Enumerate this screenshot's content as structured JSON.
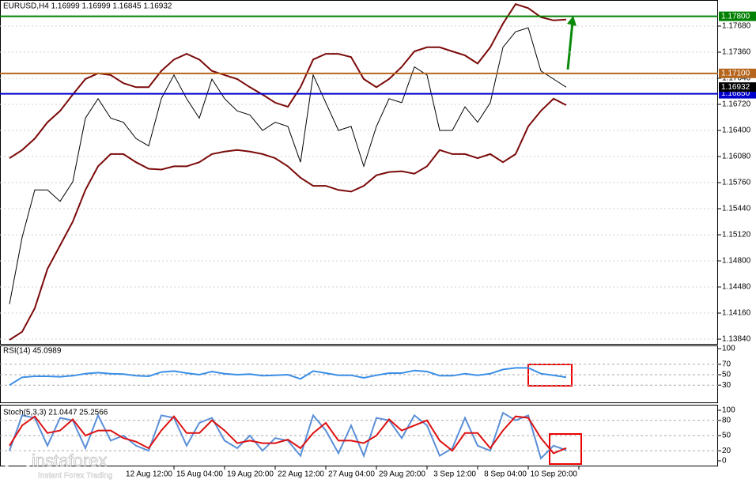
{
  "chart_data": [
    {
      "type": "line",
      "title": "EURUSD,H4  1.16999 1.16999 1.16845 1.16932",
      "categories": [
        null,
        null,
        null,
        null,
        null,
        null,
        null,
        null,
        null,
        null,
        null,
        null,
        null,
        "12 Aug 12:00",
        null,
        null,
        null,
        "15 Aug 04:00",
        null,
        null,
        null,
        "19 Aug 20:00",
        null,
        null,
        null,
        "22 Aug 12:00",
        null,
        null,
        null,
        "27 Aug 04:00",
        null,
        null,
        null,
        "29 Aug 20:00",
        null,
        null,
        null,
        "3 Sep 12:00",
        null,
        null,
        null,
        "8 Sep 04:00",
        null,
        null,
        null,
        "10 Sep 20:00"
      ],
      "series": [
        {
          "color": "#000000",
          "values": [
            1.1427,
            1.1509,
            1.1567,
            1.1567,
            1.1553,
            1.1577,
            1.1655,
            1.1679,
            1.1655,
            1.165,
            1.163,
            1.1621,
            1.1679,
            1.1708,
            1.1679,
            1.1655,
            1.1703,
            1.1679,
            1.1664,
            1.1659,
            1.164,
            1.165,
            1.1645,
            1.1601,
            1.1708,
            1.1674,
            1.164,
            1.1645,
            1.1596,
            1.1645,
            1.1679,
            1.1674,
            1.1718,
            1.1708,
            1.164,
            1.164,
            1.1669,
            1.165,
            1.1674,
            1.1742,
            1.1761,
            1.1766,
            1.1713,
            1.1703,
            1.1693,
            null
          ]
        },
        {
          "color": "#7b0a0a",
          "values": [
            1.1606,
            1.1616,
            1.163,
            1.165,
            1.1664,
            1.1684,
            1.1703,
            1.171,
            1.1708,
            1.1698,
            1.1693,
            1.1693,
            1.1713,
            1.1727,
            1.1734,
            1.1727,
            1.1713,
            1.1708,
            1.1703,
            1.1693,
            1.1684,
            1.1674,
            1.1669,
            1.1693,
            1.1727,
            1.1734,
            1.1734,
            1.173,
            1.1703,
            1.1693,
            1.1703,
            1.1718,
            1.1737,
            1.1742,
            1.1742,
            1.1737,
            1.1732,
            1.1722,
            1.1742,
            1.1771,
            1.1795,
            1.179,
            1.1779,
            1.1775,
            1.1776,
            null
          ]
        },
        {
          "color": "#7b0a0a",
          "values": [
            1.1383,
            1.1393,
            1.1422,
            1.147,
            1.1499,
            1.1528,
            1.1567,
            1.1596,
            1.1611,
            1.1611,
            1.1601,
            1.1593,
            1.1592,
            1.1596,
            1.1596,
            1.1601,
            1.1611,
            1.1614,
            1.1616,
            1.1614,
            1.1611,
            1.1606,
            1.1596,
            1.1582,
            1.1572,
            1.1572,
            1.1567,
            1.1565,
            1.1572,
            1.1585,
            1.1589,
            1.159,
            1.1587,
            1.1596,
            1.1616,
            1.1611,
            1.1611,
            1.1606,
            1.1611,
            1.1601,
            1.1611,
            1.1645,
            1.1664,
            1.1679,
            1.1671,
            null
          ]
        }
      ],
      "ylim": [
        1.13782,
        1.18
      ],
      "yticks": [
        {
          "value": 1.1768,
          "label": "1.17680"
        },
        {
          "value": 1.1736,
          "label": "1.17360"
        },
        {
          "value": 1.1704,
          "label": "1.17040"
        },
        {
          "value": 1.1672,
          "label": "1.16720"
        },
        {
          "value": 1.164,
          "label": "1.16400"
        },
        {
          "value": 1.1608,
          "label": "1.16080"
        },
        {
          "value": 1.1576,
          "label": "1.15760"
        },
        {
          "value": 1.1544,
          "label": "1.15440"
        },
        {
          "value": 1.1512,
          "label": "1.15120"
        },
        {
          "value": 1.148,
          "label": "1.14800"
        },
        {
          "value": 1.1448,
          "label": "1.14480"
        },
        {
          "value": 1.1416,
          "label": "1.14160"
        },
        {
          "value": 1.1384,
          "label": "1.13840"
        }
      ],
      "levels": [
        {
          "value": 1.178,
          "label": "1.17800",
          "color": "#008000"
        },
        {
          "value": 1.171,
          "label": "1.17100",
          "color": "#b5651d"
        },
        {
          "value": 1.1685,
          "label": "1.16850",
          "color": "#0000cc"
        }
      ],
      "current_price": {
        "value": 1.16932,
        "label": "1.16932"
      }
    },
    {
      "type": "line",
      "title": "RSI(14) 45.0989",
      "series": [
        {
          "color": "#3a8ee6",
          "values": [
            30,
            45,
            47,
            47,
            46,
            48,
            52,
            54,
            52,
            51,
            48,
            47,
            55,
            57,
            53,
            50,
            56,
            52,
            50,
            51,
            48,
            49,
            50,
            42,
            57,
            53,
            49,
            49,
            44,
            49,
            53,
            53,
            58,
            56,
            48,
            48,
            52,
            49,
            52,
            60,
            63,
            63,
            52,
            49,
            45.0989,
            null
          ]
        }
      ],
      "ylim": [
        0,
        100
      ],
      "yticks": [
        30,
        50,
        70,
        100
      ]
    },
    {
      "type": "line",
      "title": "Stoch(5,3,3) 21.0447 25.2566",
      "series": [
        {
          "color": "#5b8fd8",
          "values": [
            20,
            90,
            85,
            30,
            85,
            80,
            25,
            90,
            40,
            50,
            30,
            20,
            90,
            85,
            30,
            75,
            85,
            40,
            25,
            50,
            20,
            45,
            40,
            10,
            90,
            60,
            15,
            70,
            10,
            85,
            80,
            45,
            90,
            70,
            10,
            25,
            85,
            30,
            20,
            95,
            80,
            90,
            5,
            30,
            21.0447,
            null
          ]
        },
        {
          "color": "#dd1111",
          "values": [
            30,
            70,
            88,
            55,
            60,
            82,
            50,
            60,
            60,
            45,
            38,
            25,
            60,
            88,
            55,
            55,
            80,
            60,
            35,
            40,
            35,
            35,
            42,
            25,
            55,
            75,
            40,
            40,
            35,
            50,
            82,
            60,
            70,
            80,
            40,
            20,
            55,
            55,
            25,
            60,
            88,
            85,
            45,
            15,
            25.2566,
            null
          ]
        }
      ],
      "ylim": [
        0,
        100
      ],
      "yticks": [
        0,
        20,
        50,
        80,
        100
      ]
    }
  ],
  "watermark": {
    "brand": "instaforex",
    "tagline": "Instant Forex Trading"
  }
}
